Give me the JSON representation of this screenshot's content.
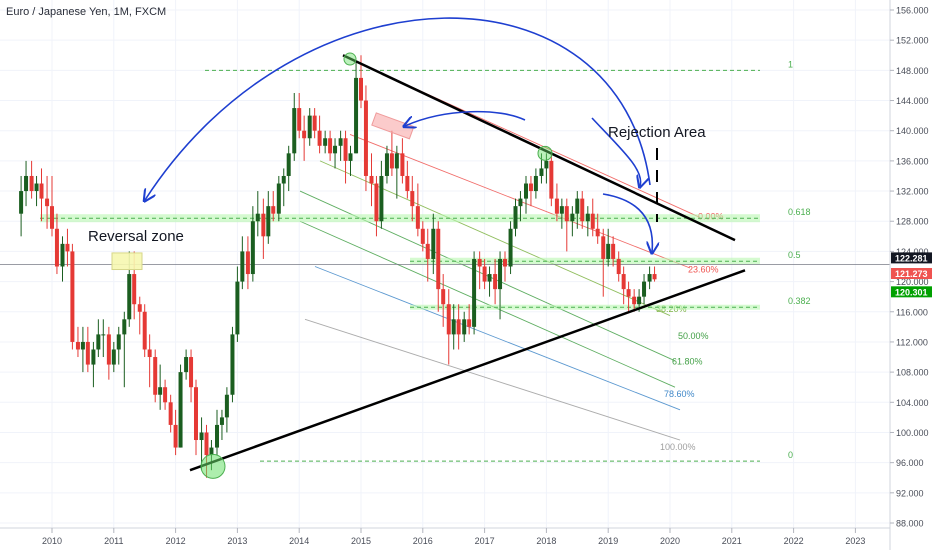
{
  "chart_data": {
    "type": "candlestick",
    "title": "Euro / Japanese Yen, 1M, FXCM",
    "timeframe": "1M",
    "x_ticks": [
      "2010",
      "2011",
      "2012",
      "2013",
      "2014",
      "2015",
      "2016",
      "2017",
      "2018",
      "2019",
      "2020",
      "2021",
      "2022",
      "2023"
    ],
    "y_ticks": [
      "156.000",
      "152.000",
      "148.000",
      "144.000",
      "140.000",
      "136.000",
      "132.000",
      "128.000",
      "124.000",
      "120.000",
      "116.000",
      "112.000",
      "108.000",
      "104.000",
      "100.000",
      "96.000",
      "92.000",
      "88.000"
    ],
    "ylim": [
      88,
      157
    ],
    "price_labels": [
      {
        "text": "122.281",
        "color": "#131722",
        "price": 122.28
      },
      {
        "text": "121.273",
        "color": "#ef5350",
        "price": 121.27
      },
      {
        "text": "120.301",
        "color": "#00a000",
        "price": 120.3
      }
    ],
    "annotations": {
      "reversal_zone": "Reversal zone",
      "rejection_area": "Rejection Area"
    },
    "fib_retracement": [
      {
        "label": "1",
        "price": 148.0
      },
      {
        "label": "0.618",
        "price": 128.4
      },
      {
        "label": "0.5",
        "price": 122.7
      },
      {
        "label": "0.382",
        "price": 116.6
      },
      {
        "label": "0",
        "price": 96.2
      }
    ],
    "fib_fan": [
      {
        "label": "0.00%",
        "color": "#ef5350"
      },
      {
        "label": "23.60%",
        "color": "#ef5350"
      },
      {
        "label": "38.20%",
        "color": "#7cb342"
      },
      {
        "label": "50.00%",
        "color": "#43a047"
      },
      {
        "label": "61.80%",
        "color": "#43a047"
      },
      {
        "label": "78.60%",
        "color": "#3f87c8"
      },
      {
        "label": "100.00%",
        "color": "#9e9e9e"
      }
    ],
    "colors": {
      "up": "#26a69a",
      "down": "#ef5350",
      "candle_up": "#1b5e20",
      "candle_down": "#e53935",
      "fib_line": "#4caf50",
      "zone": "#b9f6b0",
      "arc": "#1e3fd0",
      "trendline": "#000000"
    },
    "candles": [
      [
        2009.5,
        129,
        134,
        126,
        132
      ],
      [
        2009.58,
        132,
        136,
        130,
        134
      ],
      [
        2009.67,
        134,
        136,
        131,
        132
      ],
      [
        2009.75,
        132,
        134,
        130,
        133
      ],
      [
        2009.83,
        133,
        135,
        128,
        131
      ],
      [
        2009.92,
        131,
        134,
        127,
        130
      ],
      [
        2010.0,
        130,
        134,
        126,
        127
      ],
      [
        2010.08,
        127,
        129,
        121,
        122
      ],
      [
        2010.17,
        122,
        126,
        120,
        125
      ],
      [
        2010.25,
        125,
        127,
        122,
        124
      ],
      [
        2010.33,
        124,
        125,
        111,
        112
      ],
      [
        2010.42,
        112,
        114,
        110,
        111
      ],
      [
        2010.5,
        111,
        114,
        108,
        112
      ],
      [
        2010.58,
        112,
        114,
        108,
        109
      ],
      [
        2010.67,
        109,
        112,
        106,
        111
      ],
      [
        2010.75,
        111,
        115,
        110,
        113
      ],
      [
        2010.83,
        113,
        115,
        110,
        113
      ],
      [
        2010.92,
        113,
        114,
        107,
        109
      ],
      [
        2011.0,
        109,
        112,
        108,
        111
      ],
      [
        2011.08,
        111,
        114,
        109,
        113
      ],
      [
        2011.17,
        113,
        116,
        106,
        115
      ],
      [
        2011.25,
        115,
        124,
        114,
        121
      ],
      [
        2011.33,
        121,
        124,
        115,
        117
      ],
      [
        2011.42,
        117,
        118,
        113,
        116
      ],
      [
        2011.5,
        116,
        117,
        110,
        111
      ],
      [
        2011.58,
        111,
        113,
        106,
        110
      ],
      [
        2011.67,
        110,
        111,
        104,
        105
      ],
      [
        2011.75,
        105,
        109,
        103,
        106
      ],
      [
        2011.83,
        106,
        107,
        103,
        104
      ],
      [
        2011.92,
        104,
        105,
        100,
        101
      ],
      [
        2012.0,
        101,
        103,
        97,
        98
      ],
      [
        2012.08,
        98,
        109,
        98,
        108
      ],
      [
        2012.17,
        108,
        111,
        107,
        110
      ],
      [
        2012.25,
        110,
        111,
        104,
        106
      ],
      [
        2012.33,
        106,
        107,
        97,
        99
      ],
      [
        2012.42,
        99,
        102,
        95,
        100
      ],
      [
        2012.5,
        100,
        101,
        94,
        97
      ],
      [
        2012.58,
        97,
        99,
        95,
        98
      ],
      [
        2012.67,
        98,
        103,
        97,
        101
      ],
      [
        2012.75,
        101,
        103,
        99,
        102
      ],
      [
        2012.83,
        102,
        106,
        100,
        105
      ],
      [
        2012.92,
        105,
        114,
        104,
        113
      ],
      [
        2013.0,
        113,
        122,
        112,
        120
      ],
      [
        2013.08,
        120,
        126,
        119,
        124
      ],
      [
        2013.17,
        124,
        126,
        119,
        121
      ],
      [
        2013.25,
        121,
        130,
        120,
        128
      ],
      [
        2013.33,
        128,
        132,
        126,
        129
      ],
      [
        2013.42,
        129,
        131,
        123,
        126
      ],
      [
        2013.5,
        126,
        132,
        125,
        130
      ],
      [
        2013.58,
        130,
        132,
        128,
        129
      ],
      [
        2013.67,
        129,
        134,
        128,
        133
      ],
      [
        2013.75,
        133,
        135,
        130,
        134
      ],
      [
        2013.83,
        134,
        138,
        132,
        137
      ],
      [
        2013.92,
        137,
        145,
        136,
        143
      ],
      [
        2014.0,
        143,
        145,
        139,
        140
      ],
      [
        2014.08,
        140,
        142,
        136,
        139
      ],
      [
        2014.17,
        139,
        143,
        138,
        142
      ],
      [
        2014.25,
        142,
        143,
        139,
        140
      ],
      [
        2014.33,
        140,
        142,
        137,
        138
      ],
      [
        2014.42,
        138,
        140,
        137,
        139
      ],
      [
        2014.5,
        139,
        140,
        136,
        137
      ],
      [
        2014.58,
        137,
        139,
        135,
        138
      ],
      [
        2014.67,
        138,
        140,
        136,
        139
      ],
      [
        2014.75,
        139,
        140,
        133,
        136
      ],
      [
        2014.83,
        136,
        138,
        134,
        137
      ],
      [
        2014.92,
        137,
        149,
        137,
        147
      ],
      [
        2015.0,
        147,
        150,
        143,
        144
      ],
      [
        2015.08,
        144,
        146,
        132,
        134
      ],
      [
        2015.17,
        134,
        137,
        130,
        133
      ],
      [
        2015.25,
        133,
        134,
        126,
        128
      ],
      [
        2015.33,
        128,
        136,
        127,
        134
      ],
      [
        2015.42,
        134,
        138,
        133,
        137
      ],
      [
        2015.5,
        137,
        140,
        134,
        135
      ],
      [
        2015.58,
        135,
        138,
        131,
        137
      ],
      [
        2015.67,
        137,
        139,
        133,
        134
      ],
      [
        2015.75,
        134,
        136,
        131,
        132
      ],
      [
        2015.83,
        132,
        134,
        128,
        130
      ],
      [
        2015.92,
        130,
        133,
        126,
        127
      ],
      [
        2016.0,
        127,
        128,
        124,
        125
      ],
      [
        2016.08,
        125,
        127,
        120,
        123
      ],
      [
        2016.17,
        123,
        129,
        121,
        127
      ],
      [
        2016.25,
        127,
        128,
        116,
        119
      ],
      [
        2016.33,
        119,
        121,
        114,
        117
      ],
      [
        2016.42,
        117,
        119,
        109,
        113
      ],
      [
        2016.5,
        113,
        117,
        111,
        115
      ],
      [
        2016.58,
        115,
        117,
        111,
        113
      ],
      [
        2016.67,
        113,
        116,
        112,
        115
      ],
      [
        2016.75,
        115,
        117,
        113,
        114
      ],
      [
        2016.83,
        114,
        124,
        113,
        123
      ],
      [
        2016.92,
        123,
        124,
        119,
        122
      ],
      [
        2017.0,
        122,
        123,
        119,
        120
      ],
      [
        2017.08,
        120,
        122,
        118,
        121
      ],
      [
        2017.17,
        121,
        123,
        117,
        119
      ],
      [
        2017.25,
        119,
        124,
        115,
        123
      ],
      [
        2017.33,
        123,
        124,
        120,
        122
      ],
      [
        2017.42,
        122,
        128,
        121,
        127
      ],
      [
        2017.5,
        127,
        131,
        126,
        130
      ],
      [
        2017.58,
        130,
        132,
        128,
        131
      ],
      [
        2017.67,
        131,
        134,
        129,
        133
      ],
      [
        2017.75,
        133,
        134,
        130,
        132
      ],
      [
        2017.83,
        132,
        135,
        131,
        134
      ],
      [
        2017.92,
        134,
        137,
        133,
        135
      ],
      [
        2018.0,
        135,
        137,
        133,
        136
      ],
      [
        2018.08,
        136,
        137,
        130,
        131
      ],
      [
        2018.17,
        131,
        133,
        128,
        129
      ],
      [
        2018.25,
        129,
        131,
        127,
        130
      ],
      [
        2018.33,
        130,
        131,
        124,
        128
      ],
      [
        2018.42,
        128,
        130,
        126,
        129
      ],
      [
        2018.5,
        129,
        132,
        127,
        131
      ],
      [
        2018.58,
        131,
        132,
        127,
        128
      ],
      [
        2018.67,
        128,
        130,
        126,
        129
      ],
      [
        2018.75,
        129,
        131,
        126,
        127
      ],
      [
        2018.83,
        127,
        129,
        125,
        126
      ],
      [
        2018.92,
        126,
        127,
        118,
        123
      ],
      [
        2019.0,
        123,
        127,
        122,
        125
      ],
      [
        2019.08,
        125,
        126,
        122,
        123
      ],
      [
        2019.17,
        123,
        124,
        120,
        121
      ],
      [
        2019.25,
        121,
        122,
        117,
        119
      ],
      [
        2019.33,
        119,
        120,
        116,
        118
      ],
      [
        2019.42,
        118,
        119,
        116,
        117
      ],
      [
        2019.5,
        117,
        119,
        116,
        118
      ],
      [
        2019.58,
        118,
        121,
        117,
        120
      ],
      [
        2019.67,
        120,
        122,
        119,
        121
      ],
      [
        2019.75,
        121,
        122,
        120,
        120.3
      ]
    ]
  }
}
